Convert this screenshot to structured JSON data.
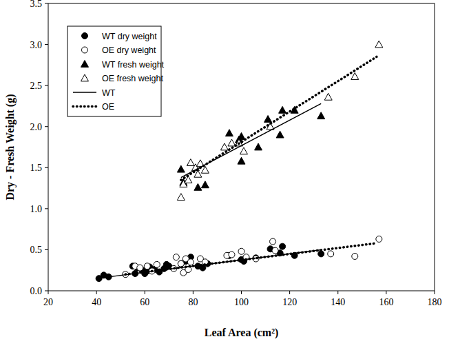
{
  "chart_data": {
    "type": "scatter",
    "x_label": "Leaf Area (cm²)",
    "y_label": "Dry - Fresh Weight (g)",
    "xlim": [
      20,
      180
    ],
    "ylim": [
      0,
      3.5
    ],
    "xticks": [
      20,
      40,
      60,
      80,
      100,
      120,
      140,
      160,
      180
    ],
    "yticks": [
      {
        "value": 0,
        "label": "0.0"
      },
      {
        "value": 0.5,
        "label": "0.5"
      },
      {
        "value": 1,
        "label": "1.0"
      },
      {
        "value": 1.5,
        "label": "1.5"
      },
      {
        "value": 2,
        "label": "2.0"
      },
      {
        "value": 2.5,
        "label": "2.5"
      },
      {
        "value": 3,
        "label": "3.0"
      },
      {
        "value": 3.5,
        "label": "3.5"
      }
    ],
    "legend": "upper left",
    "series": [
      {
        "name": "WT dry weight",
        "type": "scatter",
        "marker": "circle",
        "color": "#000000",
        "x": [
          41,
          43,
          45,
          55,
          56,
          57,
          59,
          60,
          61,
          62,
          64,
          66,
          68,
          69,
          70,
          75,
          77,
          79,
          82,
          84,
          86,
          95,
          100,
          101,
          106,
          112,
          116,
          117,
          122,
          133
        ],
        "values": [
          0.15,
          0.19,
          0.17,
          0.3,
          0.21,
          0.28,
          0.25,
          0.21,
          0.24,
          0.29,
          0.26,
          0.23,
          0.27,
          0.32,
          0.3,
          0.33,
          0.36,
          0.41,
          0.3,
          0.28,
          0.33,
          0.43,
          0.38,
          0.36,
          0.4,
          0.51,
          0.46,
          0.54,
          0.43,
          0.45
        ]
      },
      {
        "name": "OE dry weight",
        "type": "scatter",
        "marker": "open-circle",
        "color": "#000000",
        "x": [
          52,
          56,
          58,
          61,
          63,
          65,
          72,
          73,
          75,
          76,
          77,
          78,
          79,
          83,
          85,
          94,
          96,
          100,
          102,
          106,
          113,
          114,
          137,
          147,
          157
        ],
        "values": [
          0.2,
          0.3,
          0.28,
          0.3,
          0.24,
          0.32,
          0.27,
          0.41,
          0.33,
          0.22,
          0.39,
          0.26,
          0.35,
          0.39,
          0.35,
          0.43,
          0.44,
          0.48,
          0.41,
          0.39,
          0.6,
          0.49,
          0.45,
          0.42,
          0.63
        ]
      },
      {
        "name": "WT fresh weight",
        "type": "scatter",
        "marker": "triangle",
        "color": "#000000",
        "x": [
          75,
          76,
          82,
          85,
          95,
          99,
          100,
          100,
          107,
          111,
          116,
          117,
          122,
          133
        ],
        "values": [
          1.48,
          1.32,
          1.26,
          1.29,
          1.92,
          1.84,
          1.58,
          1.88,
          1.75,
          2.09,
          1.9,
          2.2,
          2.2,
          2.13
        ]
      },
      {
        "name": "OE  fresh weight",
        "type": "scatter",
        "marker": "open-triangle",
        "color": "#000000",
        "x": [
          75,
          76,
          78,
          79,
          81,
          82,
          83,
          85,
          93,
          96,
          99,
          101,
          112,
          136,
          147,
          157
        ],
        "values": [
          1.14,
          1.3,
          1.35,
          1.56,
          1.5,
          1.42,
          1.55,
          1.47,
          1.75,
          1.8,
          1.8,
          1.7,
          2.0,
          2.36,
          2.61,
          3.0
        ]
      },
      {
        "name": "WT",
        "type": "line",
        "line_style": "solid",
        "color": "#000000",
        "x": [
          75,
          133,
          null,
          40,
          133
        ],
        "values": [
          1.38,
          2.28,
          null,
          0.15,
          0.5
        ]
      },
      {
        "name": "OE",
        "type": "line",
        "line_style": "dotted",
        "color": "#000000",
        "x": [
          75,
          156,
          null,
          52,
          156
        ],
        "values": [
          1.35,
          2.85,
          null,
          0.2,
          0.58
        ]
      }
    ]
  }
}
